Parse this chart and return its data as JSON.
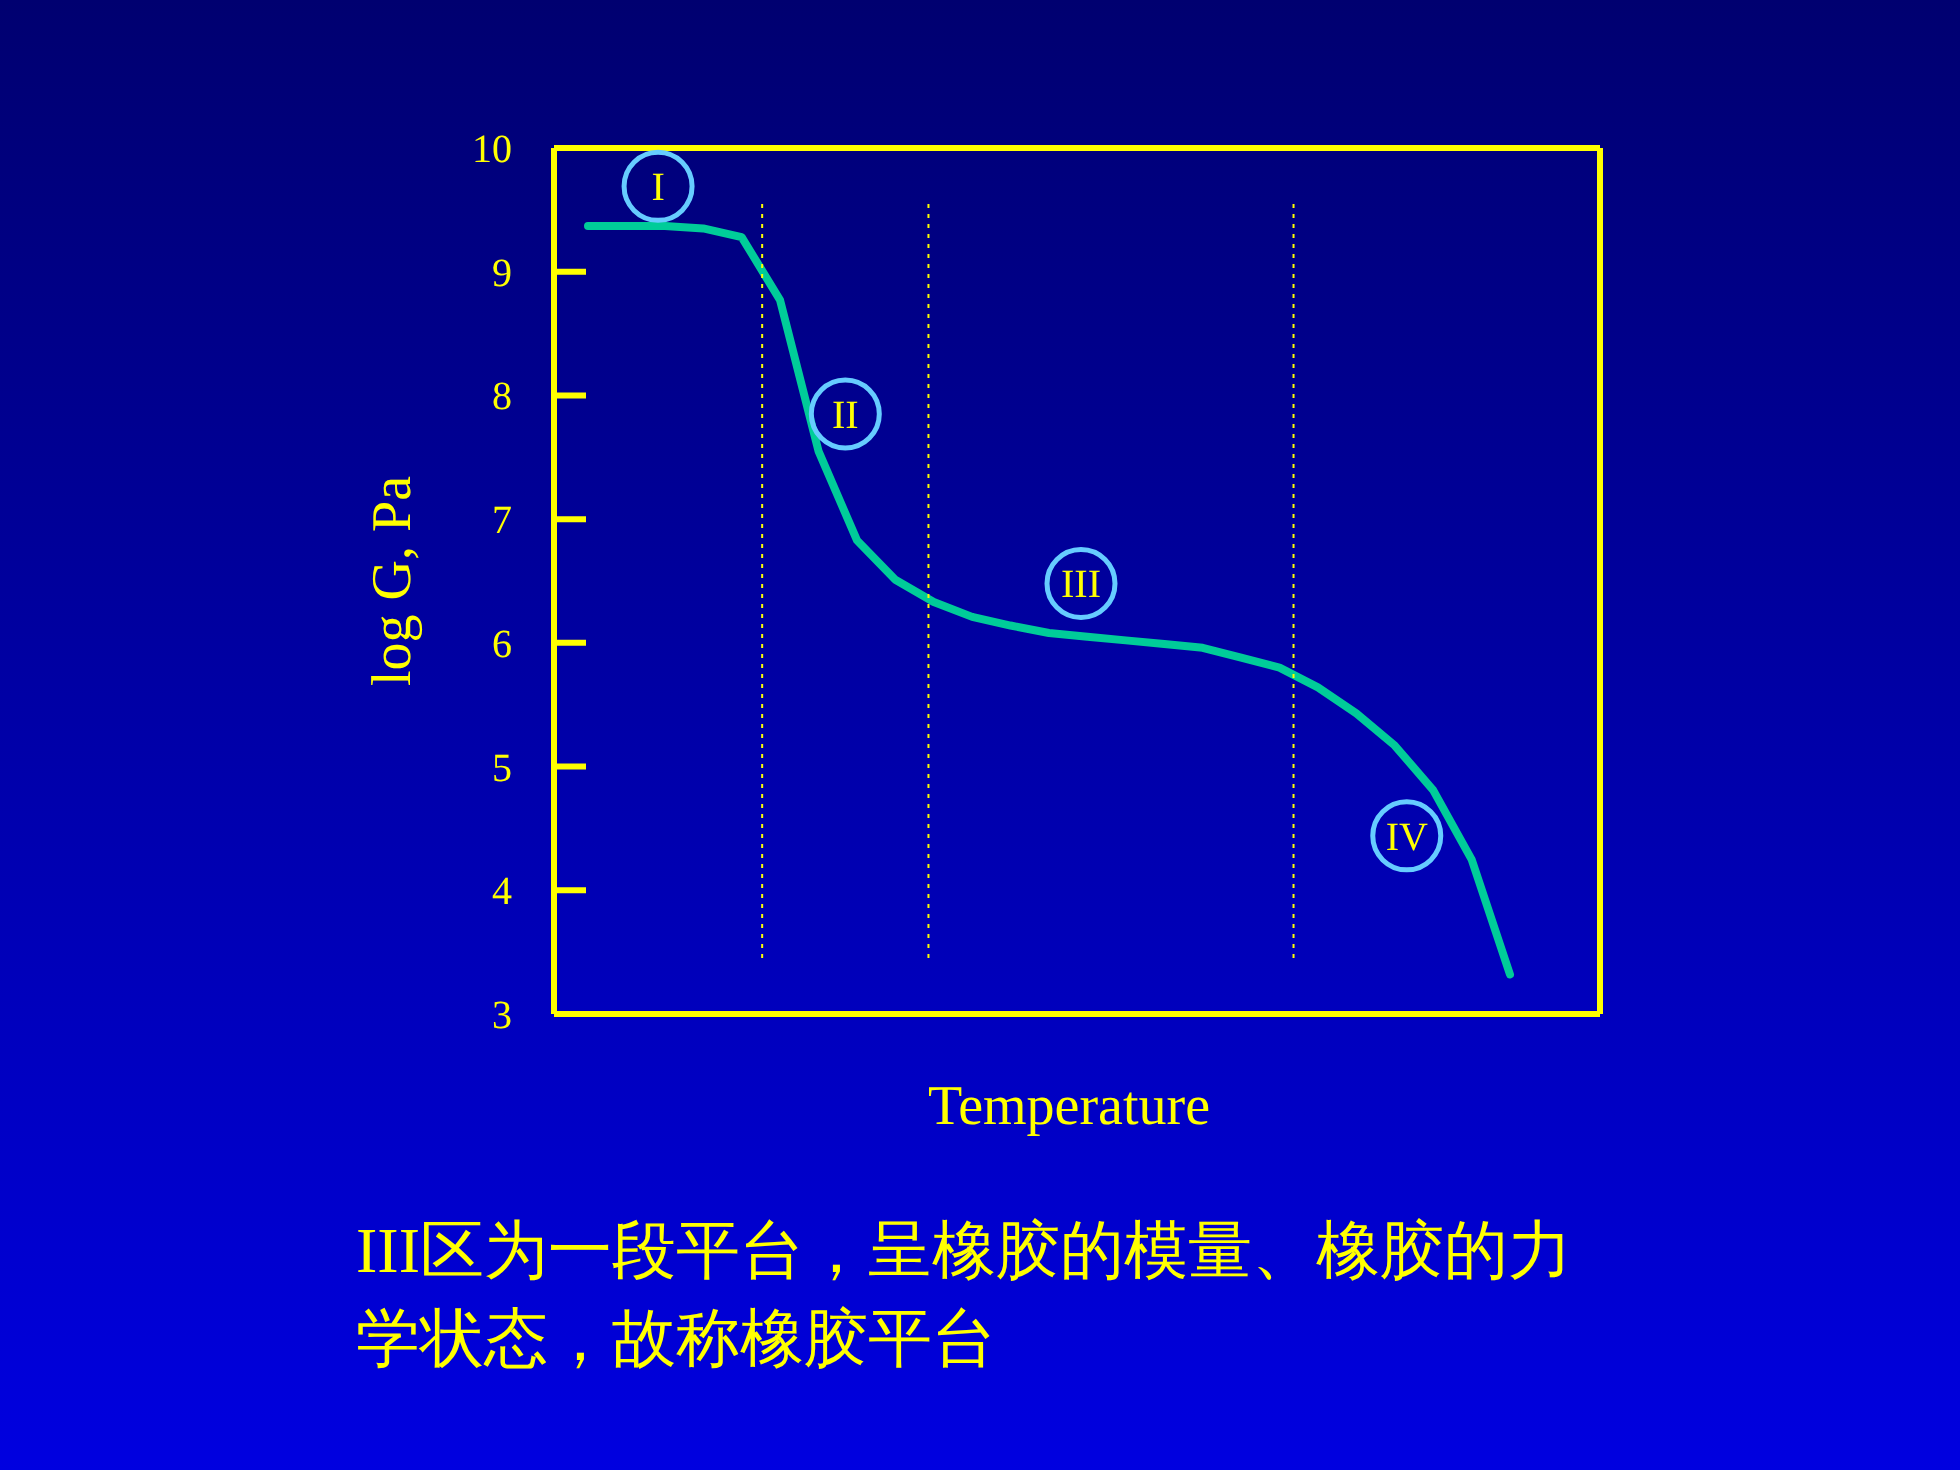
{
  "chart_data": {
    "type": "line",
    "xlabel": "Temperature",
    "ylabel": "log G, Pa",
    "categories": [
      null,
      null,
      null,
      null,
      null,
      null,
      null,
      null,
      null,
      null,
      null,
      null,
      null,
      null,
      null,
      null,
      null,
      null,
      null,
      null,
      null,
      null,
      null,
      null,
      null
    ],
    "series": [
      {
        "color": "#00cc99",
        "values": [
          9.37,
          9.37,
          9.37,
          9.35,
          9.28,
          8.77,
          7.55,
          6.83,
          6.51,
          6.33,
          6.21,
          6.14,
          6.08,
          6.05,
          6.02,
          5.99,
          5.96,
          5.88,
          5.8,
          5.64,
          5.43,
          5.17,
          4.81,
          4.25,
          3.32
        ]
      }
    ],
    "ylim": [
      3,
      10
    ],
    "yticks": [
      3,
      4,
      5,
      6,
      7,
      8,
      9,
      10
    ],
    "tick_labels": "y",
    "grid": false,
    "marker": "none",
    "line_style": "solid",
    "annotations": [
      {
        "text": "I",
        "y": 9.69
      },
      {
        "text": "II",
        "y": 7.85
      },
      {
        "text": "III",
        "y": 6.48
      },
      {
        "text": "IV",
        "y": 4.44
      },
      "III区为一段平台，呈橡胶的模量、橡胶的力学状态，故称橡胶平台"
    ]
  }
}
